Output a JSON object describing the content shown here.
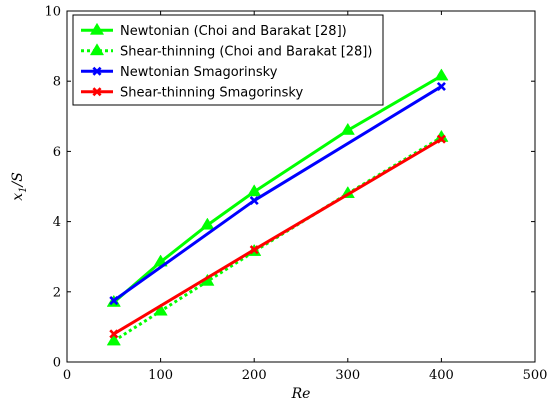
{
  "chart_data": {
    "type": "line",
    "xlabel": "Re",
    "ylabel_main": "x",
    "ylabel_sub": "1",
    "ylabel_tail": "/S",
    "xlim": [
      0,
      500
    ],
    "ylim": [
      0,
      10
    ],
    "xticks": [
      0,
      100,
      200,
      300,
      400,
      500
    ],
    "yticks": [
      0,
      2,
      4,
      6,
      8,
      10
    ],
    "legend_position": "top-left",
    "grid": false,
    "series": [
      {
        "name": "Newtonian (Choi and Barakat [28])",
        "color": "#00ff00",
        "dash": "solid",
        "marker": "triangle",
        "x": [
          50,
          100,
          150,
          200,
          300,
          400
        ],
        "y": [
          1.7,
          2.85,
          3.9,
          4.85,
          6.6,
          8.15
        ]
      },
      {
        "name": "Shear-thinning (Choi and Barakat [28])",
        "color": "#00ff00",
        "dash": "dotted",
        "marker": "triangle",
        "x": [
          50,
          100,
          150,
          200,
          300,
          400
        ],
        "y": [
          0.6,
          1.45,
          2.3,
          3.15,
          4.8,
          6.4
        ]
      },
      {
        "name": "Newtonian Smagorinsky",
        "color": "#0000ff",
        "dash": "solid",
        "marker": "cross",
        "x": [
          50,
          200,
          400
        ],
        "y": [
          1.75,
          4.6,
          7.85
        ]
      },
      {
        "name": "Shear-thinning Smagorinsky",
        "color": "#ff0000",
        "dash": "solid",
        "marker": "cross",
        "x": [
          50,
          200,
          400
        ],
        "y": [
          0.8,
          3.2,
          6.35
        ]
      }
    ]
  }
}
